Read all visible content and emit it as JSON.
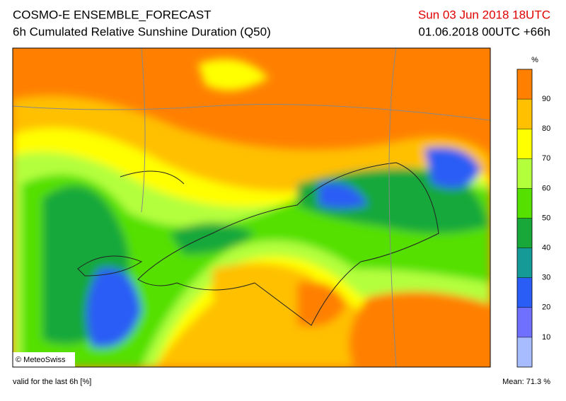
{
  "header": {
    "title": "COSMO-E ENSEMBLE_FORECAST",
    "subtitle": "6h Cumulated Relative Sunshine Duration (Q50)",
    "valid_time": "Sun 03 Jun 2018 18UTC",
    "run": "01.06.2018 00UTC +66h"
  },
  "map": {
    "credit": "© MeteoSwiss"
  },
  "colorbar": {
    "unit": "%",
    "lim": [
      0,
      100
    ],
    "ticks": [
      10,
      20,
      30,
      40,
      50,
      60,
      70,
      80,
      90
    ],
    "colors": [
      "#a6bcff",
      "#6f70ff",
      "#2a5df5",
      "#169a98",
      "#18a83a",
      "#55e000",
      "#b4ff3c",
      "#ffff00",
      "#ffc000",
      "#ff8000"
    ]
  },
  "footer": {
    "note": "valid for the last 6h [%]",
    "mean": "Mean:  71.3 %"
  }
}
